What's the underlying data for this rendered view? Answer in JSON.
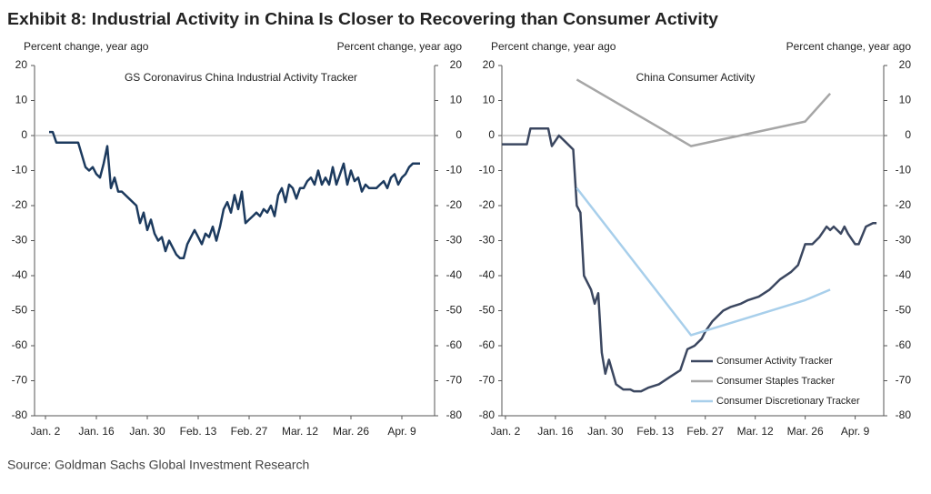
{
  "title": "Exhibit 8: Industrial Activity in China Is Closer to Recovering than Consumer Activity",
  "source": "Source: Goldman Sachs Global Investment Research",
  "chart_data": [
    {
      "type": "line",
      "subtitle": "GS Coronavirus  China  Industrial Activity Tracker",
      "ylabel": "Percent change, year ago",
      "y2label": "Percent change, year ago",
      "xlim": [
        -3,
        107
      ],
      "xticks": [
        {
          "value": 0,
          "label": "Jan. 2"
        },
        {
          "value": 14,
          "label": "Jan. 16"
        },
        {
          "value": 28,
          "label": "Jan. 30"
        },
        {
          "value": 42,
          "label": "Feb. 13"
        },
        {
          "value": 56,
          "label": "Feb. 27"
        },
        {
          "value": 70,
          "label": "Mar. 12"
        },
        {
          "value": 84,
          "label": "Mar. 26"
        },
        {
          "value": 98,
          "label": "Apr. 9"
        }
      ],
      "ylim": [
        -80,
        20
      ],
      "yticks": [
        20,
        10,
        0,
        -10,
        -20,
        -30,
        -40,
        -50,
        -60,
        -70,
        -80
      ],
      "y2lim": [
        -80,
        20
      ],
      "y2ticks": [
        20,
        10,
        0,
        -10,
        -20,
        -30,
        -40,
        -50,
        -60,
        -70,
        -80
      ],
      "series": [
        {
          "color": "#1c3a5e",
          "x": [
            1,
            2,
            3,
            5,
            7,
            9,
            11,
            12,
            13,
            14,
            15,
            16,
            17,
            18,
            19,
            20,
            21,
            23,
            25,
            26,
            27,
            28,
            29,
            30,
            31,
            32,
            33,
            34,
            35,
            36,
            37,
            38,
            39,
            40,
            41,
            42,
            43,
            44,
            45,
            46,
            47,
            48,
            49,
            50,
            51,
            52,
            53,
            54,
            55,
            56,
            57,
            58,
            59,
            60,
            61,
            62,
            63,
            64,
            65,
            66,
            67,
            68,
            69,
            70,
            71,
            72,
            73,
            74,
            75,
            76,
            77,
            78,
            79,
            80,
            81,
            82,
            83,
            84,
            85,
            86,
            87,
            88,
            89,
            90,
            91,
            92,
            93,
            94,
            95,
            96,
            97,
            98,
            99,
            100,
            101,
            102,
            103
          ],
          "values": [
            1,
            1,
            -2,
            -2,
            -2,
            -2,
            -9,
            -10,
            -9,
            -11,
            -12,
            -8,
            -3,
            -15,
            -12,
            -16,
            -16,
            -18,
            -20,
            -25,
            -22,
            -27,
            -24,
            -28,
            -30,
            -29,
            -33,
            -30,
            -32,
            -34,
            -35,
            -35,
            -31,
            -29,
            -27,
            -29,
            -31,
            -28,
            -29,
            -26,
            -30,
            -26,
            -21,
            -19,
            -22,
            -17,
            -21,
            -16,
            -25,
            -24,
            -23,
            -22,
            -23,
            -21,
            -22,
            -20,
            -23,
            -17,
            -15,
            -19,
            -14,
            -15,
            -18,
            -15,
            -15,
            -13,
            -12,
            -14,
            -10,
            -14,
            -12,
            -14,
            -9,
            -14,
            -11,
            -8,
            -14,
            -10,
            -13,
            -12,
            -16,
            -14,
            -15,
            -15,
            -15,
            -14,
            -13,
            -15,
            -12,
            -11,
            -14,
            -12,
            -11,
            -9,
            -8,
            -8,
            -8
          ]
        }
      ]
    },
    {
      "type": "line",
      "subtitle": "China Consumer Activity",
      "ylabel": "Percent change, year ago",
      "y2label": "Percent change, year ago",
      "xlim": [
        -1,
        106
      ],
      "xticks": [
        {
          "value": 0,
          "label": "Jan. 2"
        },
        {
          "value": 14,
          "label": "Jan. 16"
        },
        {
          "value": 28,
          "label": "Jan. 30"
        },
        {
          "value": 42,
          "label": "Feb. 13"
        },
        {
          "value": 56,
          "label": "Feb. 27"
        },
        {
          "value": 70,
          "label": "Mar. 12"
        },
        {
          "value": 84,
          "label": "Mar. 26"
        },
        {
          "value": 98,
          "label": "Apr. 9"
        }
      ],
      "ylim": [
        -80,
        20
      ],
      "yticks": [
        20,
        10,
        0,
        -10,
        -20,
        -30,
        -40,
        -50,
        -60,
        -70,
        -80
      ],
      "y2lim": [
        -80,
        20
      ],
      "y2ticks": [
        20,
        10,
        0,
        -10,
        -20,
        -30,
        -40,
        -50,
        -60,
        -70,
        -80
      ],
      "legend": "lower right",
      "series": [
        {
          "name": "Consumer Activity Tracker",
          "color": "#3b4760",
          "x": [
            -1,
            6,
            7,
            12,
            13,
            15,
            17,
            19,
            20,
            21,
            22,
            24,
            25,
            26,
            27,
            28,
            29,
            31,
            33,
            35,
            36,
            38,
            40,
            43,
            46,
            49,
            50,
            51,
            53,
            55,
            56,
            58,
            61,
            63,
            66,
            68,
            71,
            74,
            77,
            80,
            82,
            84,
            86,
            88,
            90,
            91,
            92,
            94,
            95,
            96,
            98,
            99,
            101,
            103,
            104
          ],
          "values": [
            -2.5,
            -2.5,
            2,
            2,
            -3,
            0,
            -2,
            -4,
            -20,
            -22,
            -40,
            -44,
            -48,
            -45,
            -62,
            -68,
            -64,
            -71,
            -72.5,
            -72.5,
            -73,
            -73,
            -72,
            -71,
            -69,
            -67,
            -64,
            -61,
            -60,
            -58,
            -56,
            -53,
            -50,
            -49,
            -48,
            -47,
            -46,
            -44,
            -41,
            -39,
            -37,
            -31,
            -31,
            -29,
            -26,
            -27,
            -26,
            -28,
            -26,
            -28,
            -31,
            -31,
            -26,
            -25,
            -25
          ]
        },
        {
          "name": "Consumer Staples Tracker",
          "color": "#a6a6a6",
          "x": [
            20,
            52,
            84,
            91
          ],
          "values": [
            16,
            -3,
            4,
            12
          ]
        },
        {
          "name": "Consumer Discretionary Tracker",
          "color": "#a8cfeb",
          "x": [
            20,
            52,
            84,
            91
          ],
          "values": [
            -15,
            -57,
            -47,
            -44
          ]
        }
      ]
    }
  ]
}
